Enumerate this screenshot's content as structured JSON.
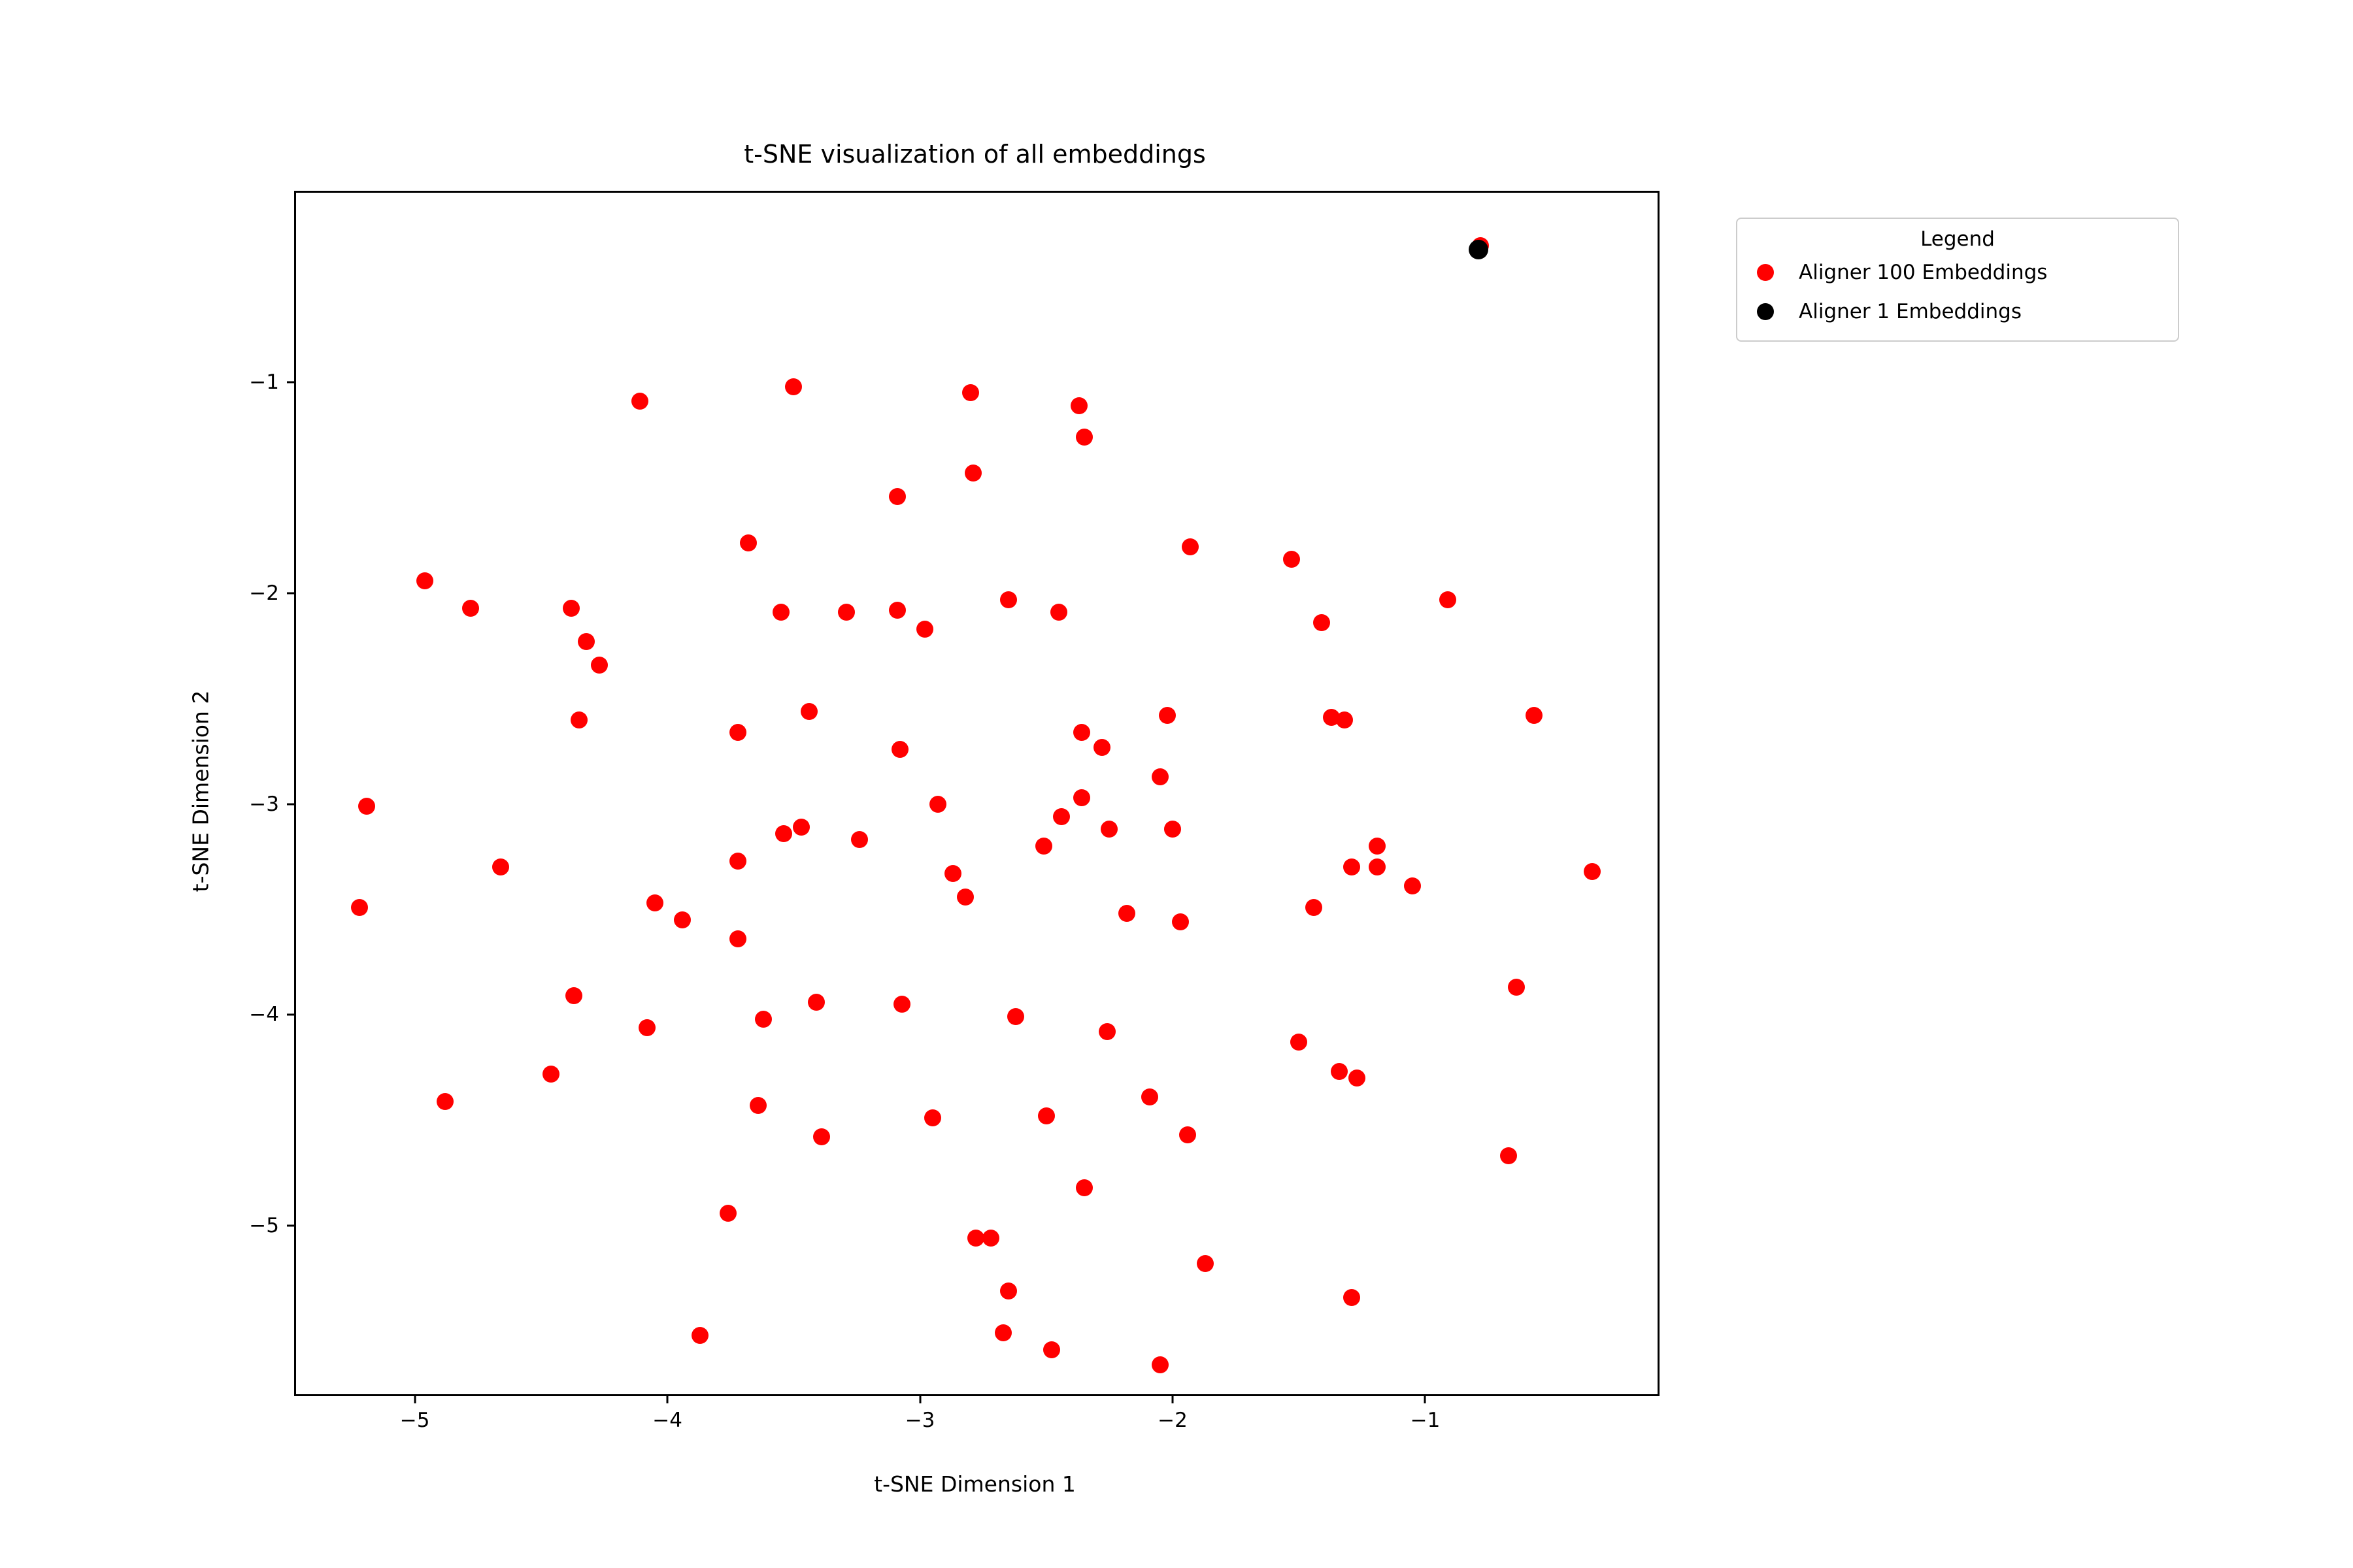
{
  "chart_data": {
    "type": "scatter",
    "title": "t-SNE visualization of all embeddings",
    "xlabel": "t-SNE Dimension 1",
    "ylabel": "t-SNE Dimension 2",
    "xlim": [
      -5.47,
      -0.08
    ],
    "ylim": [
      -5.8,
      -0.1
    ],
    "grid": false,
    "xticks": {
      "values": [
        -5,
        -4,
        -3,
        -2,
        -1
      ],
      "labels": [
        "−5",
        "−4",
        "−3",
        "−2",
        "−1"
      ]
    },
    "yticks": {
      "values": [
        -1,
        -2,
        -3,
        -4,
        -5
      ],
      "labels": [
        "−1",
        "−2",
        "−3",
        "−4",
        "−5"
      ]
    },
    "legend": {
      "title": "Legend",
      "position": "outside upper right",
      "entries": [
        {
          "label": "Aligner 100 Embeddings",
          "color": "#ff0000"
        },
        {
          "label": "Aligner 1 Embeddings",
          "color": "#000000"
        }
      ]
    },
    "series": [
      {
        "name": "Aligner 100 Embeddings",
        "color": "#ff0000",
        "marker_diameter_px": 26,
        "points": [
          [
            -4.11,
            -1.09
          ],
          [
            -3.5,
            -1.02
          ],
          [
            -2.8,
            -1.05
          ],
          [
            -2.37,
            -1.11
          ],
          [
            -2.35,
            -1.26
          ],
          [
            -2.79,
            -1.43
          ],
          [
            -3.09,
            -1.54
          ],
          [
            -3.68,
            -1.76
          ],
          [
            -1.93,
            -1.78
          ],
          [
            -1.53,
            -1.84
          ],
          [
            -4.96,
            -1.94
          ],
          [
            -0.78,
            -0.35
          ],
          [
            -4.78,
            -2.07
          ],
          [
            -4.38,
            -2.07
          ],
          [
            -4.32,
            -2.23
          ],
          [
            -4.27,
            -2.34
          ],
          [
            -3.55,
            -2.09
          ],
          [
            -3.29,
            -2.09
          ],
          [
            -3.09,
            -2.08
          ],
          [
            -2.98,
            -2.17
          ],
          [
            -2.65,
            -2.03
          ],
          [
            -2.45,
            -2.09
          ],
          [
            -1.41,
            -2.14
          ],
          [
            -0.91,
            -2.03
          ],
          [
            -4.35,
            -2.6
          ],
          [
            -3.72,
            -2.66
          ],
          [
            -3.44,
            -2.56
          ],
          [
            -2.36,
            -2.66
          ],
          [
            -2.28,
            -2.73
          ],
          [
            -2.02,
            -2.58
          ],
          [
            -1.37,
            -2.59
          ],
          [
            -1.32,
            -2.6
          ],
          [
            -0.57,
            -2.58
          ],
          [
            -5.19,
            -3.01
          ],
          [
            -3.08,
            -2.74
          ],
          [
            -2.93,
            -3.0
          ],
          [
            -2.36,
            -2.97
          ],
          [
            -2.51,
            -3.2
          ],
          [
            -2.44,
            -3.06
          ],
          [
            -2.25,
            -3.12
          ],
          [
            -2.05,
            -2.87
          ],
          [
            -2.0,
            -3.12
          ],
          [
            -3.54,
            -3.14
          ],
          [
            -3.47,
            -3.11
          ],
          [
            -3.24,
            -3.17
          ],
          [
            -4.66,
            -3.3
          ],
          [
            -5.22,
            -3.49
          ],
          [
            -3.72,
            -3.27
          ],
          [
            -4.05,
            -3.47
          ],
          [
            -3.94,
            -3.55
          ],
          [
            -3.72,
            -3.64
          ],
          [
            -2.87,
            -3.33
          ],
          [
            -2.82,
            -3.44
          ],
          [
            -2.18,
            -3.52
          ],
          [
            -1.97,
            -3.56
          ],
          [
            -1.29,
            -3.3
          ],
          [
            -1.19,
            -3.3
          ],
          [
            -1.19,
            -3.2
          ],
          [
            -1.05,
            -3.39
          ],
          [
            -1.44,
            -3.49
          ],
          [
            -0.34,
            -3.32
          ],
          [
            -0.64,
            -3.87
          ],
          [
            -4.37,
            -3.91
          ],
          [
            -4.08,
            -4.06
          ],
          [
            -4.46,
            -4.28
          ],
          [
            -4.88,
            -4.41
          ],
          [
            -3.62,
            -4.02
          ],
          [
            -3.41,
            -3.94
          ],
          [
            -3.07,
            -3.95
          ],
          [
            -2.62,
            -4.01
          ],
          [
            -2.26,
            -4.08
          ],
          [
            -3.64,
            -4.43
          ],
          [
            -3.39,
            -4.58
          ],
          [
            -2.95,
            -4.49
          ],
          [
            -2.5,
            -4.48
          ],
          [
            -2.09,
            -4.39
          ],
          [
            -1.94,
            -4.57
          ],
          [
            -2.35,
            -4.82
          ],
          [
            -1.5,
            -4.13
          ],
          [
            -1.34,
            -4.27
          ],
          [
            -1.27,
            -4.3
          ],
          [
            -0.67,
            -4.67
          ],
          [
            -3.76,
            -4.94
          ],
          [
            -2.78,
            -5.06
          ],
          [
            -2.72,
            -5.06
          ],
          [
            -1.87,
            -5.18
          ],
          [
            -2.65,
            -5.31
          ],
          [
            -2.67,
            -5.51
          ],
          [
            -2.48,
            -5.59
          ],
          [
            -2.05,
            -5.66
          ],
          [
            -3.87,
            -5.52
          ],
          [
            -1.29,
            -5.34
          ]
        ]
      },
      {
        "name": "Aligner 1 Embeddings",
        "color": "#000000",
        "marker_diameter_px": 30,
        "points": [
          [
            -0.79,
            -0.37
          ]
        ]
      }
    ]
  },
  "colors": {
    "background": "#ffffff",
    "spine": "#000000",
    "text": "#000000",
    "legend_border": "#cccccc",
    "red_series": "#ff0000",
    "black_series": "#000000"
  }
}
